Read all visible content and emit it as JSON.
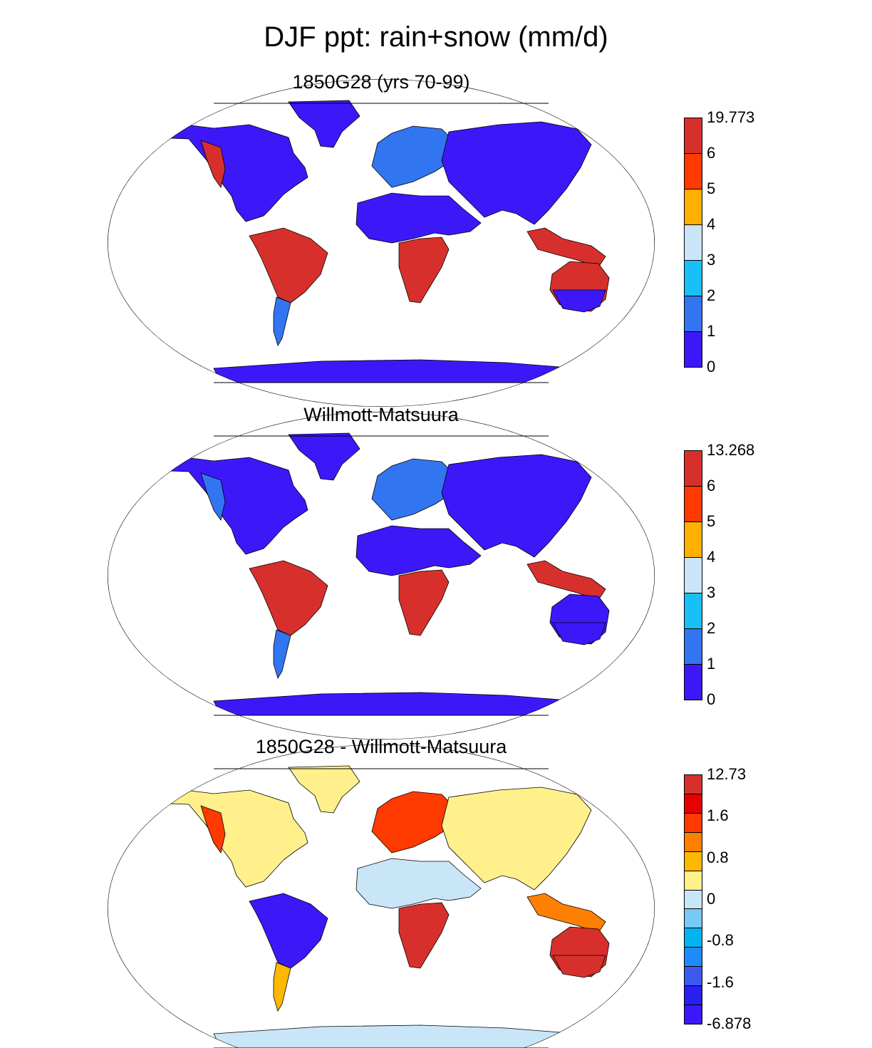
{
  "title": "DJF ppt: rain+snow (mm/d)",
  "panels": [
    {
      "title": "1850G28 (yrs 70-99)",
      "colorbar": {
        "labels": [
          "19.773",
          "6",
          "5",
          "4",
          "3",
          "2",
          "1",
          "0"
        ],
        "colors": [
          "#d7302c",
          "#ff3a00",
          "#ffb000",
          "#c8e6f8",
          "#18c0f8",
          "#3275f0",
          "#3c18f8"
        ]
      },
      "regions": {
        "ocean": "#ffffff",
        "north_america": "#3c18f8",
        "nw_coast": "#d7302c",
        "greenland": "#3c18f8",
        "europe_asia": "#3c18f8",
        "europe_west": "#3275f0",
        "africa_north": "#3c18f8",
        "africa_south": "#d7302c",
        "south_america_north": "#d7302c",
        "south_america_south": "#3275f0",
        "se_asia": "#d7302c",
        "australia": "#d7302c",
        "australia_south": "#3c18f8",
        "antarctica": "#3c18f8"
      }
    },
    {
      "title": "Willmott-Matsuura",
      "colorbar": {
        "labels": [
          "13.268",
          "6",
          "5",
          "4",
          "3",
          "2",
          "1",
          "0"
        ],
        "colors": [
          "#d7302c",
          "#ff3a00",
          "#ffb000",
          "#c8e6f8",
          "#18c0f8",
          "#3275f0",
          "#3c18f8"
        ]
      },
      "regions": {
        "ocean": "#ffffff",
        "north_america": "#3c18f8",
        "nw_coast": "#3275f0",
        "greenland": "#3c18f8",
        "europe_asia": "#3c18f8",
        "europe_west": "#3275f0",
        "africa_north": "#3c18f8",
        "africa_south": "#d7302c",
        "south_america_north": "#d7302c",
        "south_america_south": "#3275f0",
        "se_asia": "#d7302c",
        "australia": "#3c18f8",
        "australia_south": "#3c18f8",
        "antarctica": "#3c18f8"
      }
    },
    {
      "title": "1850G28 - Willmott-Matsuura",
      "colorbar": {
        "labels": [
          "12.73",
          "",
          "1.6",
          "",
          "0.8",
          "",
          "0",
          "",
          "-0.8",
          "",
          "-1.6",
          "",
          "-6.878"
        ],
        "colors": [
          "#d7302c",
          "#e80000",
          "#ff3a00",
          "#ff8000",
          "#ffb800",
          "#fff08c",
          "#c8e6f8",
          "#78c8f8",
          "#00b4f0",
          "#1e8cf8",
          "#3c5af0",
          "#2820f0",
          "#3c18f8"
        ]
      },
      "regions": {
        "ocean": "#ffffff",
        "north_america": "#fff08c",
        "nw_coast": "#ff3a00",
        "greenland": "#fff08c",
        "europe_asia": "#fff08c",
        "europe_west": "#ff3a00",
        "africa_north": "#c8e6f8",
        "africa_south": "#d7302c",
        "south_america_north": "#3c18f8",
        "south_america_south": "#ffb800",
        "se_asia": "#ff8000",
        "australia": "#d7302c",
        "australia_south": "#d7302c",
        "antarctica": "#c8e6f8"
      }
    }
  ]
}
